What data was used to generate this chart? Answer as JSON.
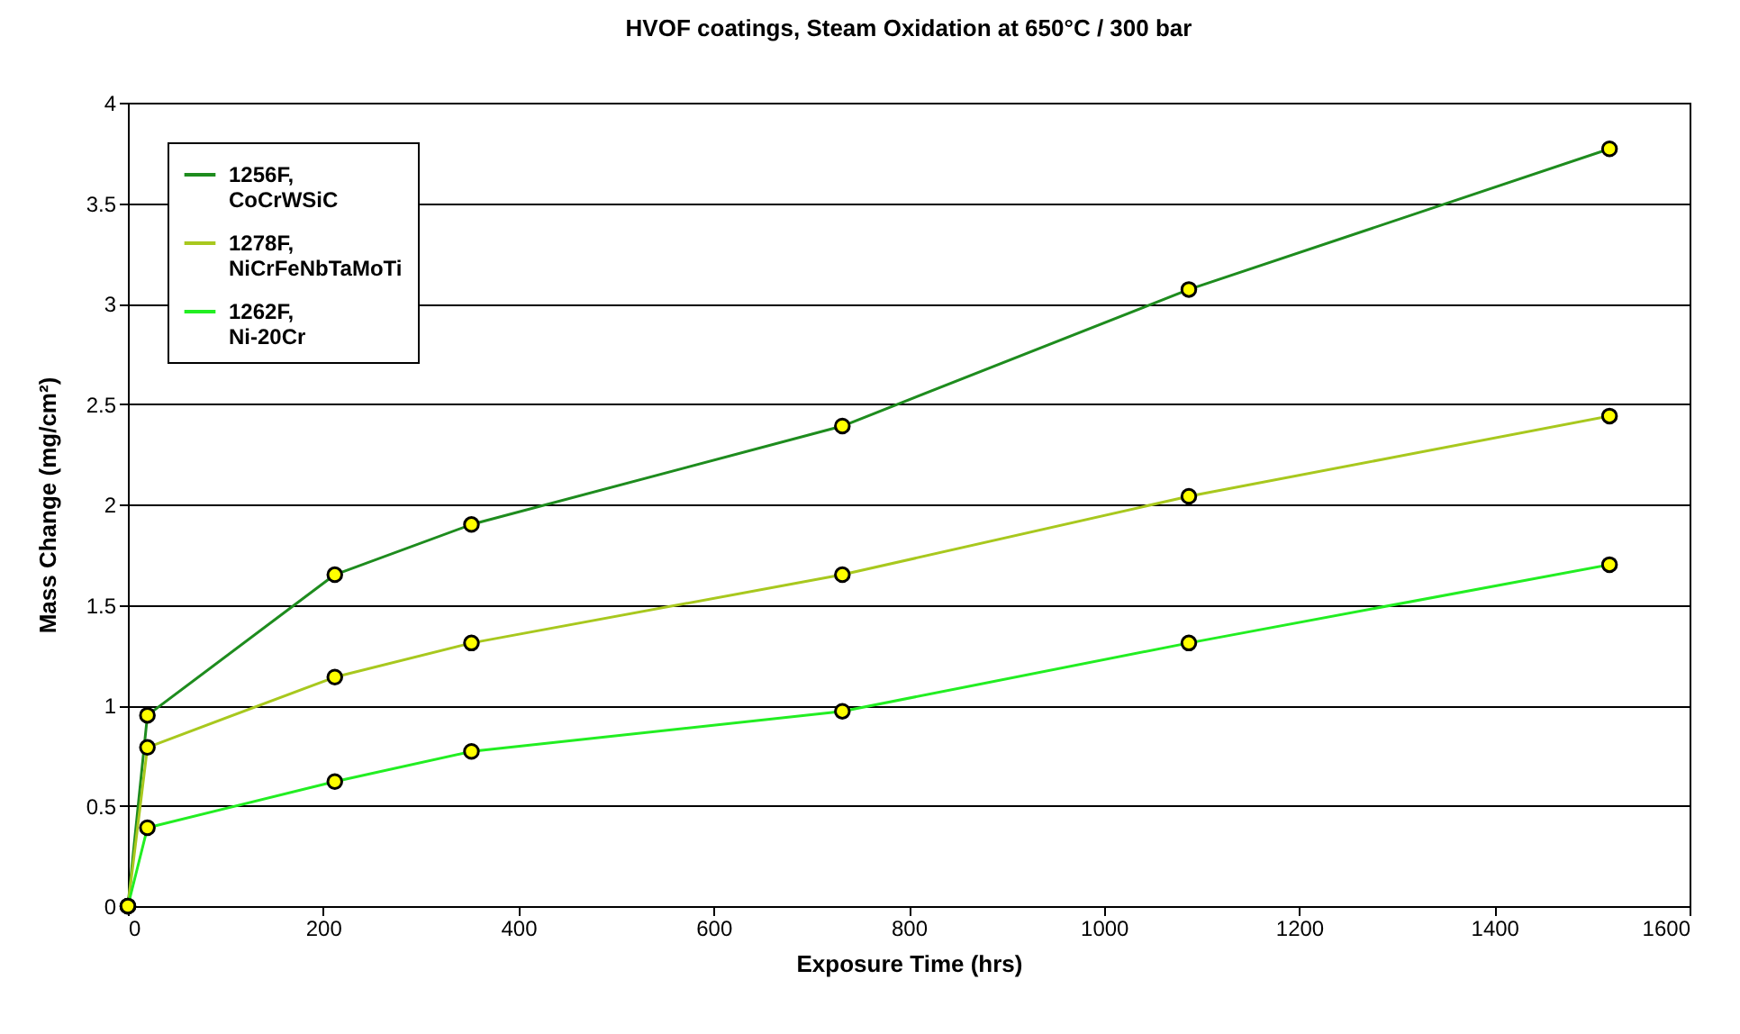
{
  "chart_data": {
    "type": "line",
    "title": "HVOF coatings, Steam Oxidation at 650°C / 300 bar",
    "xlabel": "Exposure Time (hrs)",
    "ylabel": "Mass Change (mg/cm²)",
    "x": [
      0,
      20,
      212,
      352,
      732,
      1087,
      1518
    ],
    "series": [
      {
        "name": "1256F,\nCoCrWSiC",
        "color": "#1e8c1e",
        "values": [
          0,
          0.95,
          1.65,
          1.9,
          2.39,
          3.07,
          3.77
        ]
      },
      {
        "name": "1278F,\nNiCrFeNbTaMoTi",
        "color": "#a8c81e",
        "values": [
          0,
          0.79,
          1.14,
          1.31,
          1.65,
          2.04,
          2.44
        ]
      },
      {
        "name": "1262F,\nNi-20Cr",
        "color": "#22ee22",
        "values": [
          0,
          0.39,
          0.62,
          0.77,
          0.97,
          1.31,
          1.7
        ]
      }
    ],
    "xlim": [
      0,
      1600
    ],
    "xticks": [
      0,
      200,
      400,
      600,
      800,
      1000,
      1200,
      1400,
      1600
    ],
    "ylim": [
      0,
      4
    ],
    "yticks": [
      0,
      0.5,
      1,
      1.5,
      2,
      2.5,
      3,
      3.5,
      4
    ],
    "grid": "y",
    "legend": "top left",
    "marker": "circle",
    "line_style": "solid"
  }
}
